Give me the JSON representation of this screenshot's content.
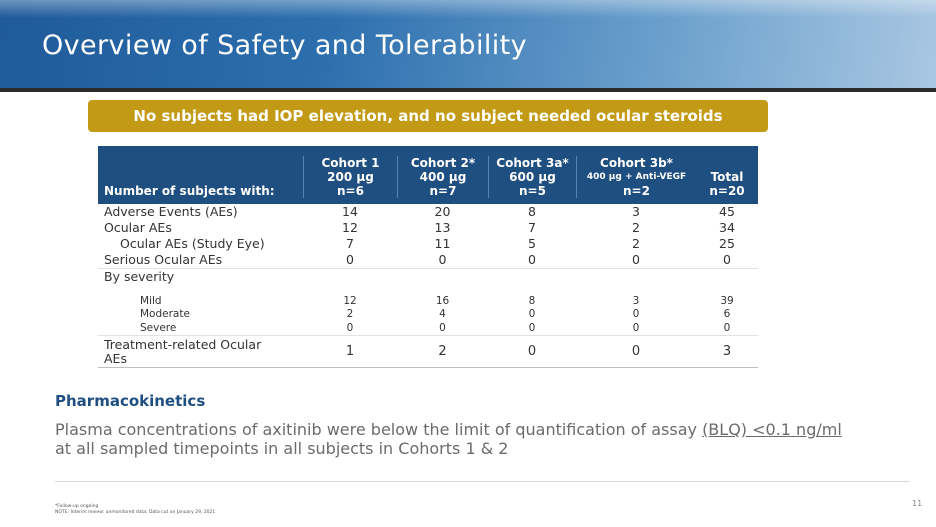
{
  "slide": {
    "title": "Overview of Safety and Tolerability",
    "banner": "No subjects had IOP elevation, and no subject needed ocular steroids",
    "page_number": "11",
    "footnotes": [
      "*Follow-up ongoing",
      "NOTE: Interim review: unmonitored data; Data cut on January 29, 2021"
    ]
  },
  "table": {
    "row_header": "Number of subjects with:",
    "columns": [
      {
        "line1": "Cohort 1",
        "line2": "200 µg",
        "line3": "n=6"
      },
      {
        "line1": "Cohort 2*",
        "line2": "400 µg",
        "line3": "n=7"
      },
      {
        "line1": "Cohort 3a*",
        "line2": "600 µg",
        "line3": "n=5"
      },
      {
        "line1": "Cohort 3b*",
        "line2": "400 µg + Anti-VEGF",
        "line3": "n=2"
      },
      {
        "line1": "",
        "line2": "Total",
        "line3": "n=20"
      }
    ],
    "rows": [
      {
        "label": "Adverse Events (AEs)",
        "values": [
          "14",
          "20",
          "8",
          "3",
          "45"
        ]
      },
      {
        "label": "Ocular AEs",
        "values": [
          "12",
          "13",
          "7",
          "2",
          "34"
        ]
      },
      {
        "label": "Ocular AEs (Study Eye)",
        "values": [
          "7",
          "11",
          "5",
          "2",
          "25"
        ]
      },
      {
        "label": "Serious Ocular AEs",
        "values": [
          "0",
          "0",
          "0",
          "0",
          "0"
        ]
      }
    ],
    "severity": {
      "label": "By severity",
      "levels": [
        "Mild",
        "Moderate",
        "Severe"
      ],
      "values": [
        [
          "12",
          "2",
          "0"
        ],
        [
          "16",
          "4",
          "0"
        ],
        [
          "8",
          "0",
          "0"
        ],
        [
          "3",
          "0",
          "0"
        ],
        [
          "39",
          "6",
          "0"
        ]
      ]
    },
    "treatment_row": {
      "label_line1": "Treatment-related Ocular",
      "label_line2": "AEs",
      "values": [
        "1",
        "2",
        "0",
        "0",
        "3"
      ]
    }
  },
  "pharmacokinetics": {
    "heading": "Pharmacokinetics",
    "text_before": "Plasma concentrations of axitinib were below the limit of quantification of assay ",
    "text_underlined": "(BLQ) <0.1 ng/ml",
    "text_after": "at all sampled timepoints in all subjects in Cohorts 1 & 2"
  }
}
